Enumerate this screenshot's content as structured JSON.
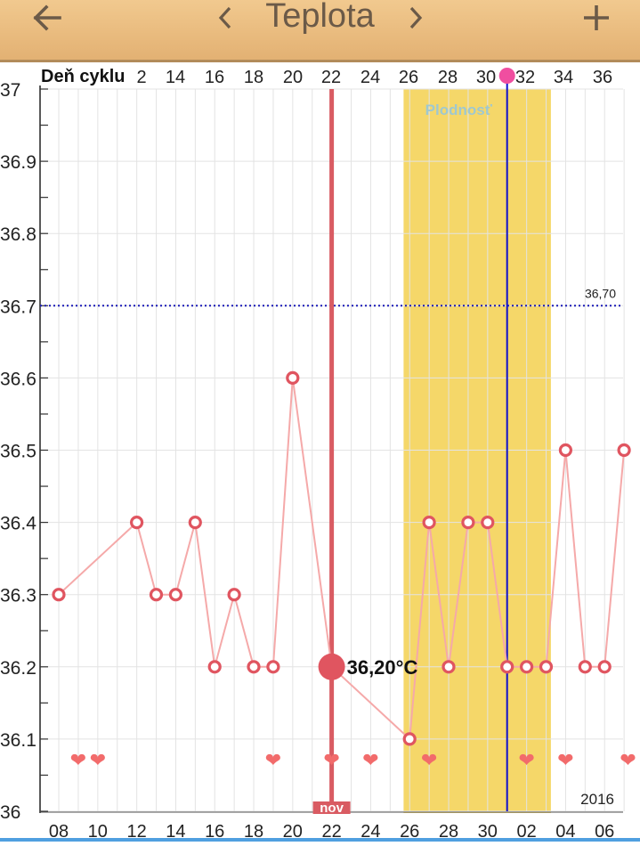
{
  "header": {
    "back_icon": "arrow-left-icon",
    "prev_icon": "chevron-left-icon",
    "title": "Teplota",
    "next_icon": "chevron-right-icon",
    "add_icon": "plus-icon"
  },
  "colors": {
    "header_bg": "#EBBD80",
    "line": "#F5A9A9",
    "point": "#E05560",
    "selected_line": "#D95B62",
    "fertile_band": "#F5D769",
    "today_line": "#1010CC",
    "threshold_line": "#1C1CB8",
    "heart": "#F26B6B",
    "grid": "#E3E3E3"
  },
  "chart_data": {
    "type": "line",
    "ylim": [
      36.0,
      37.0
    ],
    "y_ticks": [
      "37",
      "36.9",
      "36.8",
      "36.7",
      "36.6",
      "36.5",
      "36.4",
      "36.3",
      "36.2",
      "36.1",
      "36"
    ],
    "cycle_axis_label": "Deň cyklu",
    "cycle_ticks": [
      "2",
      "14",
      "16",
      "18",
      "20",
      "22",
      "24",
      "26",
      "28",
      "30",
      "32",
      "34",
      "36"
    ],
    "date_ticks": [
      "08",
      "10",
      "12",
      "14",
      "16",
      "18",
      "20",
      "22",
      "24",
      "26",
      "28",
      "30",
      "02",
      "04",
      "06"
    ],
    "year_label": "2016",
    "threshold": {
      "value": 36.7,
      "label": "36,70"
    },
    "fertile_label": "Plodnosť",
    "selected_label": "36,20°C",
    "month_label": "nov",
    "series": [
      {
        "values": [
          {
            "day": 0,
            "value": 36.3
          },
          {
            "day": 4,
            "value": 36.4
          },
          {
            "day": 5,
            "value": 36.3
          },
          {
            "day": 6,
            "value": 36.3
          },
          {
            "day": 7,
            "value": 36.4
          },
          {
            "day": 8,
            "value": 36.2
          },
          {
            "day": 9,
            "value": 36.3
          },
          {
            "day": 10,
            "value": 36.2
          },
          {
            "day": 11,
            "value": 36.2
          },
          {
            "day": 12,
            "value": 36.6
          },
          {
            "day": 14,
            "value": 36.2,
            "selected": true
          },
          {
            "day": 18,
            "value": 36.1
          },
          {
            "day": 19,
            "value": 36.4
          },
          {
            "day": 20,
            "value": 36.2
          },
          {
            "day": 21,
            "value": 36.4
          },
          {
            "day": 22,
            "value": 36.4
          },
          {
            "day": 23,
            "value": 36.2
          },
          {
            "day": 24,
            "value": 36.2
          },
          {
            "day": 25,
            "value": 36.2
          },
          {
            "day": 26,
            "value": 36.5
          },
          {
            "day": 27,
            "value": 36.2
          },
          {
            "day": 28,
            "value": 36.2
          },
          {
            "day": 29,
            "value": 36.5
          }
        ]
      }
    ],
    "fertile_window": {
      "start_day": 18,
      "end_day": 25
    },
    "selected_day": 14,
    "today_day": 23,
    "heart_days": [
      1,
      2,
      11,
      14,
      16,
      19,
      24,
      26,
      29.2
    ],
    "grid": true
  }
}
